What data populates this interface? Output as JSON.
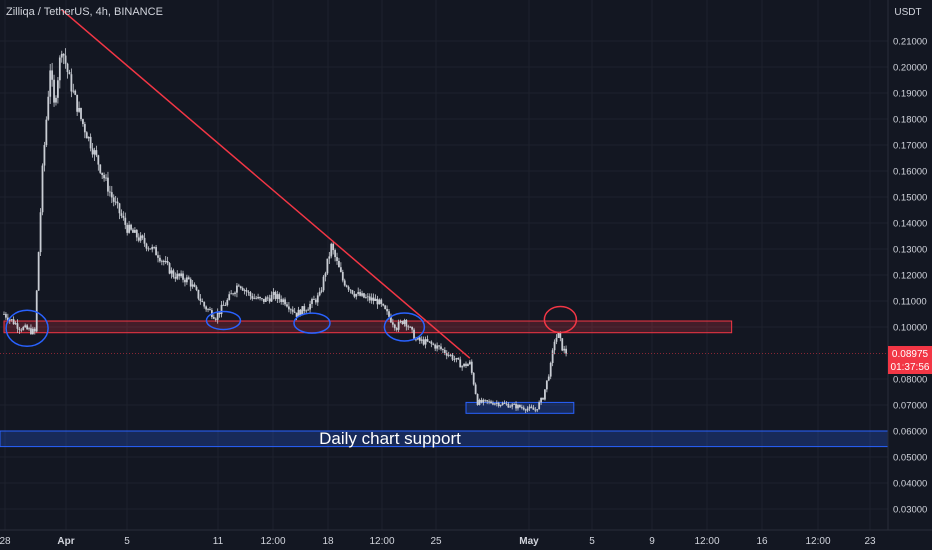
{
  "header": {
    "title": "Zilliqa / TetherUS, 4h, BINANCE"
  },
  "price_axis": {
    "unit": "USDT",
    "ticks": [
      "0.21000",
      "0.20000",
      "0.19000",
      "0.18000",
      "0.17000",
      "0.16000",
      "0.15000",
      "0.14000",
      "0.13000",
      "0.12000",
      "0.11000",
      "0.10000",
      "0.08000",
      "0.07000",
      "0.06000",
      "0.05000",
      "0.04000",
      "0.03000"
    ],
    "last_price": "0.08975",
    "countdown": "01:37:56"
  },
  "time_axis": {
    "ticks": [
      "28",
      "Apr",
      "5",
      "11",
      "12:00",
      "18",
      "12:00",
      "25",
      "May",
      "5",
      "9",
      "12:00",
      "16",
      "12:00",
      "23"
    ]
  },
  "annotations": {
    "support_label": "Daily chart support"
  },
  "colors": {
    "background": "#131722",
    "candle": "#c9cdd4",
    "trendline": "#f23645",
    "resistance_fill": "rgba(242,54,69,0.22)",
    "support_fill": "rgba(41,98,255,0.25)",
    "support_border": "#2962ff",
    "circle_blue": "#2962ff",
    "circle_red": "#f23645",
    "last_price_badge": "#f23645"
  },
  "chart_data": {
    "type": "candlestick",
    "title": "Zilliqa / TetherUS, 4h, BINANCE",
    "timeframe": "4h",
    "exchange": "BINANCE",
    "y_unit": "USDT",
    "ylim": [
      0.025,
      0.225
    ],
    "x_ticks": [
      "28",
      "Apr",
      "5",
      "11",
      "12:00",
      "18",
      "12:00",
      "25",
      "May",
      "5",
      "9",
      "12:00",
      "16",
      "12:00",
      "23"
    ],
    "price_path": [
      {
        "t": 0,
        "p": 0.105
      },
      {
        "t": 4,
        "p": 0.1
      },
      {
        "t": 8,
        "p": 0.098
      },
      {
        "t": 10,
        "p": 0.16
      },
      {
        "t": 12,
        "p": 0.2
      },
      {
        "t": 13,
        "p": 0.185
      },
      {
        "t": 15,
        "p": 0.208
      },
      {
        "t": 17,
        "p": 0.195
      },
      {
        "t": 20,
        "p": 0.18
      },
      {
        "t": 24,
        "p": 0.165
      },
      {
        "t": 28,
        "p": 0.15
      },
      {
        "t": 32,
        "p": 0.138
      },
      {
        "t": 36,
        "p": 0.133
      },
      {
        "t": 40,
        "p": 0.128
      },
      {
        "t": 44,
        "p": 0.12
      },
      {
        "t": 48,
        "p": 0.118
      },
      {
        "t": 52,
        "p": 0.108
      },
      {
        "t": 55,
        "p": 0.104
      },
      {
        "t": 58,
        "p": 0.11
      },
      {
        "t": 61,
        "p": 0.117
      },
      {
        "t": 64,
        "p": 0.112
      },
      {
        "t": 67,
        "p": 0.11
      },
      {
        "t": 70,
        "p": 0.112
      },
      {
        "t": 73,
        "p": 0.11
      },
      {
        "t": 76,
        "p": 0.105
      },
      {
        "t": 79,
        "p": 0.108
      },
      {
        "t": 82,
        "p": 0.112
      },
      {
        "t": 85,
        "p": 0.131
      },
      {
        "t": 88,
        "p": 0.118
      },
      {
        "t": 91,
        "p": 0.113
      },
      {
        "t": 94,
        "p": 0.111
      },
      {
        "t": 97,
        "p": 0.11
      },
      {
        "t": 100,
        "p": 0.104
      },
      {
        "t": 102,
        "p": 0.1
      },
      {
        "t": 104,
        "p": 0.103
      },
      {
        "t": 107,
        "p": 0.095
      },
      {
        "t": 110,
        "p": 0.094
      },
      {
        "t": 113,
        "p": 0.092
      },
      {
        "t": 116,
        "p": 0.089
      },
      {
        "t": 119,
        "p": 0.085
      },
      {
        "t": 121,
        "p": 0.086
      },
      {
        "t": 123,
        "p": 0.071
      },
      {
        "t": 127,
        "p": 0.071
      },
      {
        "t": 131,
        "p": 0.07
      },
      {
        "t": 135,
        "p": 0.069
      },
      {
        "t": 138,
        "p": 0.068
      },
      {
        "t": 140,
        "p": 0.073
      },
      {
        "t": 142,
        "p": 0.085
      },
      {
        "t": 143,
        "p": 0.095
      },
      {
        "t": 144,
        "p": 0.097
      },
      {
        "t": 145,
        "p": 0.092
      },
      {
        "t": 146,
        "p": 0.0898
      }
    ],
    "drawings": {
      "trendline": {
        "from": {
          "t": 15,
          "p": 0.222
        },
        "to": {
          "t": 121,
          "p": 0.088
        }
      },
      "resistance_zone": {
        "top": 0.1023,
        "bottom": 0.0978,
        "t_start": 0,
        "t_end": 189
      },
      "local_support_zone": {
        "top": 0.071,
        "bottom": 0.0668,
        "t_start": 120,
        "t_end": 148
      },
      "daily_support_zone": {
        "top": 0.06,
        "bottom": 0.054,
        "label": "Daily chart support"
      },
      "marked_touches_blue": [
        {
          "t": 6,
          "p": 0.0995
        },
        {
          "t": 57,
          "p": 0.1025
        },
        {
          "t": 80,
          "p": 0.1015
        },
        {
          "t": 104,
          "p": 0.1
        }
      ],
      "marked_rejection_red": {
        "t": 144,
        "p": 0.1025
      }
    }
  }
}
